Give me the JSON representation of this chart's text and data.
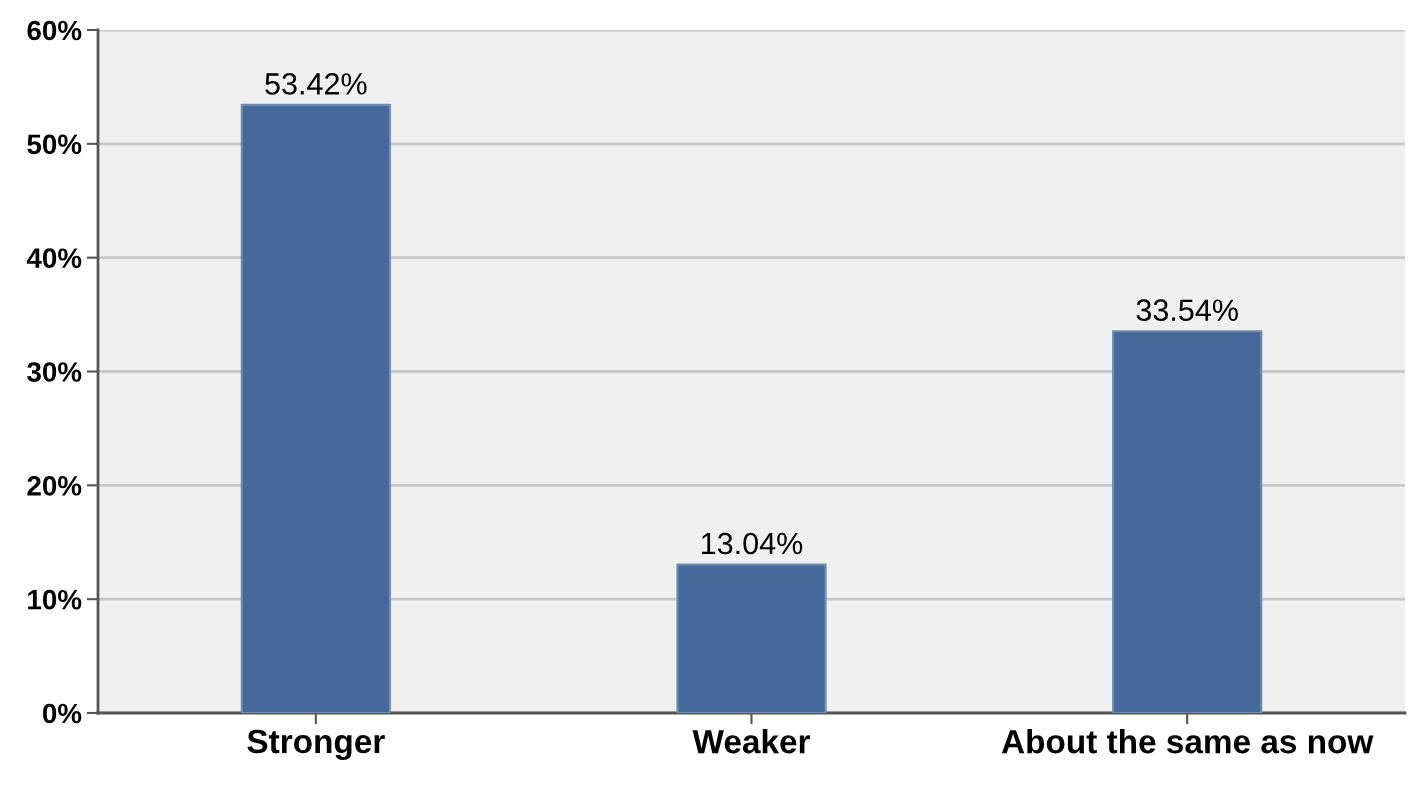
{
  "chart_data": {
    "type": "bar",
    "categories": [
      "Stronger",
      "Weaker",
      "About the same as now"
    ],
    "values": [
      53.42,
      13.04,
      33.54
    ],
    "value_labels": [
      "53.42%",
      "13.04%",
      "33.54%"
    ],
    "color": "#44699a",
    "ylim": [
      0,
      60
    ],
    "yticks": [
      {
        "value": 0,
        "label": "0%"
      },
      {
        "value": 10,
        "label": "10%"
      },
      {
        "value": 20,
        "label": "20%"
      },
      {
        "value": 30,
        "label": "30%"
      },
      {
        "value": 40,
        "label": "40%"
      },
      {
        "value": 50,
        "label": "50%"
      },
      {
        "value": 60,
        "label": "60%"
      }
    ],
    "grid": "y"
  }
}
